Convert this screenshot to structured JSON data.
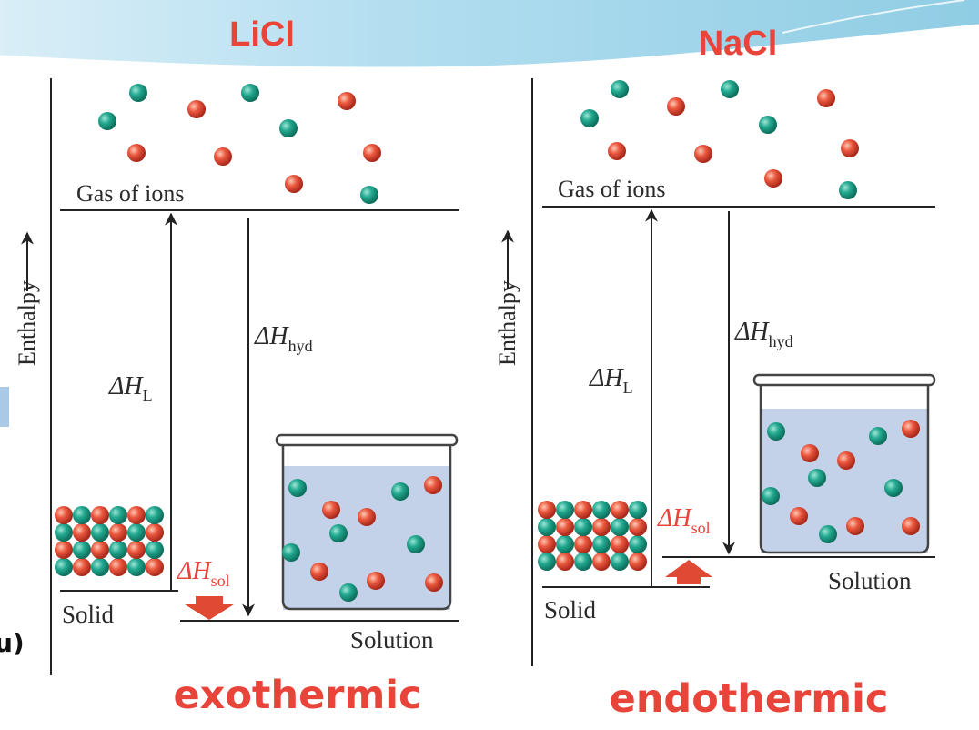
{
  "slide": {
    "edge_fragment": "u)"
  },
  "colors": {
    "title_red": "#e8443a",
    "cation_teal": "#1fa58b",
    "anion_red": "#e5533c",
    "solution_blue": "#c3d2e8",
    "banner_blue": "#a8d8ea",
    "arrow_red": "#e04a35"
  },
  "panels": [
    {
      "id": "licl",
      "title": "LiCl",
      "caption": "exothermic",
      "axis_label": "Enthalpy",
      "gas_label": "Gas of ions",
      "lattice_label": {
        "symbol": "ΔH",
        "subscript": "L"
      },
      "hydration_label": {
        "symbol": "ΔH",
        "subscript": "hyd"
      },
      "solution_label": {
        "symbol": "ΔH",
        "subscript": "sol"
      },
      "solid_label": "Solid",
      "solution_level_label": "Solution",
      "enthalpy_change": "negative"
    },
    {
      "id": "nacl",
      "title": "NaCl",
      "caption": "endothermic",
      "axis_label": "Enthalpy",
      "gas_label": "Gas of ions",
      "lattice_label": {
        "symbol": "ΔH",
        "subscript": "L"
      },
      "hydration_label": {
        "symbol": "ΔH",
        "subscript": "hyd"
      },
      "solution_label": {
        "symbol": "ΔH",
        "subscript": "sol"
      },
      "solid_label": "Solid",
      "solution_level_label": "Solution",
      "enthalpy_change": "positive"
    }
  ]
}
